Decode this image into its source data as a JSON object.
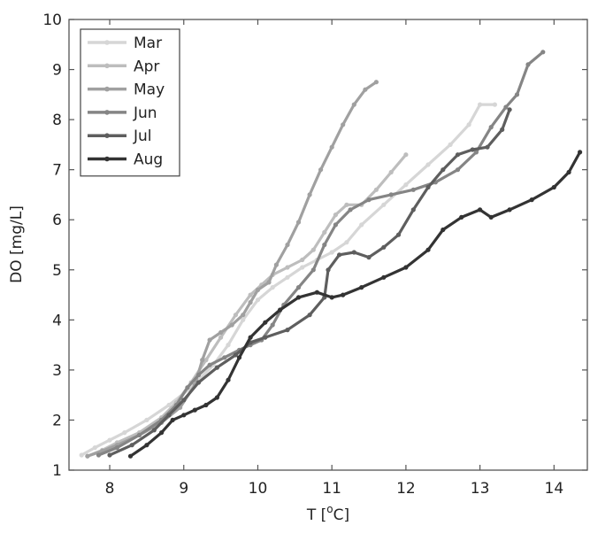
{
  "chart_data": {
    "type": "line",
    "xlabel_main": "T [",
    "xlabel_sup": "o",
    "xlabel_tail": "C]",
    "ylabel": "DO [mg/L]",
    "xlim": [
      7.45,
      14.45
    ],
    "ylim": [
      1,
      10
    ],
    "xticks": [
      8,
      9,
      10,
      11,
      12,
      13,
      14
    ],
    "yticks": [
      1,
      2,
      3,
      4,
      5,
      6,
      7,
      8,
      9,
      10
    ],
    "grid": false,
    "legend_position": "top-left",
    "series": [
      {
        "name": "Mar",
        "color": "#d6d6d6",
        "points": [
          [
            7.62,
            1.3
          ],
          [
            7.8,
            1.45
          ],
          [
            8.0,
            1.6
          ],
          [
            8.2,
            1.75
          ],
          [
            8.5,
            2.0
          ],
          [
            8.8,
            2.3
          ],
          [
            9.1,
            2.65
          ],
          [
            9.4,
            3.1
          ],
          [
            9.6,
            3.5
          ],
          [
            9.8,
            4.0
          ],
          [
            10.0,
            4.4
          ],
          [
            10.2,
            4.65
          ],
          [
            10.4,
            4.85
          ],
          [
            10.6,
            5.05
          ],
          [
            10.8,
            5.2
          ],
          [
            11.0,
            5.35
          ],
          [
            11.2,
            5.55
          ],
          [
            11.4,
            5.9
          ],
          [
            11.7,
            6.3
          ],
          [
            12.0,
            6.7
          ],
          [
            12.3,
            7.1
          ],
          [
            12.6,
            7.5
          ],
          [
            12.85,
            7.9
          ],
          [
            13.0,
            8.3
          ],
          [
            13.2,
            8.3
          ]
        ]
      },
      {
        "name": "Apr",
        "color": "#bdbdbd",
        "points": [
          [
            7.7,
            1.28
          ],
          [
            7.9,
            1.4
          ],
          [
            8.1,
            1.55
          ],
          [
            8.4,
            1.75
          ],
          [
            8.7,
            2.05
          ],
          [
            8.9,
            2.35
          ],
          [
            9.1,
            2.75
          ],
          [
            9.3,
            3.2
          ],
          [
            9.5,
            3.65
          ],
          [
            9.7,
            4.1
          ],
          [
            9.9,
            4.5
          ],
          [
            10.05,
            4.7
          ],
          [
            10.2,
            4.9
          ],
          [
            10.4,
            5.05
          ],
          [
            10.6,
            5.2
          ],
          [
            10.75,
            5.4
          ],
          [
            10.9,
            5.75
          ],
          [
            11.05,
            6.1
          ],
          [
            11.2,
            6.3
          ],
          [
            11.4,
            6.3
          ],
          [
            11.6,
            6.6
          ],
          [
            11.8,
            6.95
          ],
          [
            12.0,
            7.3
          ]
        ]
      },
      {
        "name": "May",
        "color": "#a0a0a0",
        "points": [
          [
            7.7,
            1.28
          ],
          [
            7.9,
            1.38
          ],
          [
            8.1,
            1.5
          ],
          [
            8.4,
            1.7
          ],
          [
            8.7,
            1.95
          ],
          [
            8.95,
            2.25
          ],
          [
            9.15,
            2.7
          ],
          [
            9.25,
            3.2
          ],
          [
            9.35,
            3.6
          ],
          [
            9.5,
            3.75
          ],
          [
            9.65,
            3.9
          ],
          [
            9.8,
            4.1
          ],
          [
            9.9,
            4.35
          ],
          [
            10.0,
            4.6
          ],
          [
            10.15,
            4.75
          ],
          [
            10.25,
            5.1
          ],
          [
            10.4,
            5.5
          ],
          [
            10.55,
            5.95
          ],
          [
            10.7,
            6.5
          ],
          [
            10.85,
            7.0
          ],
          [
            11.0,
            7.45
          ],
          [
            11.15,
            7.9
          ],
          [
            11.3,
            8.3
          ],
          [
            11.45,
            8.6
          ],
          [
            11.6,
            8.75
          ]
        ]
      },
      {
        "name": "Jun",
        "color": "#858585",
        "points": [
          [
            7.85,
            1.3
          ],
          [
            8.1,
            1.45
          ],
          [
            8.4,
            1.7
          ],
          [
            8.7,
            2.0
          ],
          [
            8.9,
            2.3
          ],
          [
            9.05,
            2.65
          ],
          [
            9.2,
            2.9
          ],
          [
            9.35,
            3.1
          ],
          [
            9.55,
            3.25
          ],
          [
            9.75,
            3.4
          ],
          [
            9.9,
            3.5
          ],
          [
            10.05,
            3.6
          ],
          [
            10.2,
            3.9
          ],
          [
            10.35,
            4.3
          ],
          [
            10.55,
            4.65
          ],
          [
            10.75,
            5.0
          ],
          [
            10.9,
            5.5
          ],
          [
            11.05,
            5.9
          ],
          [
            11.25,
            6.2
          ],
          [
            11.5,
            6.4
          ],
          [
            11.8,
            6.5
          ],
          [
            12.1,
            6.6
          ],
          [
            12.4,
            6.75
          ],
          [
            12.7,
            7.0
          ],
          [
            12.95,
            7.35
          ],
          [
            13.15,
            7.85
          ],
          [
            13.35,
            8.25
          ],
          [
            13.5,
            8.5
          ],
          [
            13.65,
            9.1
          ],
          [
            13.85,
            9.35
          ]
        ]
      },
      {
        "name": "Jul",
        "color": "#5e5e5e",
        "points": [
          [
            8.0,
            1.3
          ],
          [
            8.3,
            1.5
          ],
          [
            8.6,
            1.8
          ],
          [
            8.8,
            2.1
          ],
          [
            9.0,
            2.4
          ],
          [
            9.2,
            2.75
          ],
          [
            9.45,
            3.05
          ],
          [
            9.7,
            3.3
          ],
          [
            9.9,
            3.55
          ],
          [
            10.1,
            3.65
          ],
          [
            10.4,
            3.8
          ],
          [
            10.7,
            4.1
          ],
          [
            10.9,
            4.45
          ],
          [
            10.95,
            5.0
          ],
          [
            11.1,
            5.3
          ],
          [
            11.3,
            5.35
          ],
          [
            11.5,
            5.25
          ],
          [
            11.7,
            5.45
          ],
          [
            11.9,
            5.7
          ],
          [
            12.1,
            6.2
          ],
          [
            12.3,
            6.65
          ],
          [
            12.5,
            7.0
          ],
          [
            12.7,
            7.3
          ],
          [
            12.9,
            7.4
          ],
          [
            13.1,
            7.45
          ],
          [
            13.3,
            7.8
          ],
          [
            13.4,
            8.2
          ]
        ]
      },
      {
        "name": "Aug",
        "color": "#333333",
        "points": [
          [
            8.28,
            1.28
          ],
          [
            8.5,
            1.5
          ],
          [
            8.7,
            1.75
          ],
          [
            8.85,
            2.0
          ],
          [
            9.0,
            2.1
          ],
          [
            9.15,
            2.2
          ],
          [
            9.3,
            2.3
          ],
          [
            9.45,
            2.45
          ],
          [
            9.6,
            2.8
          ],
          [
            9.75,
            3.25
          ],
          [
            9.9,
            3.65
          ],
          [
            10.1,
            3.95
          ],
          [
            10.3,
            4.2
          ],
          [
            10.55,
            4.45
          ],
          [
            10.8,
            4.55
          ],
          [
            11.0,
            4.45
          ],
          [
            11.15,
            4.5
          ],
          [
            11.4,
            4.65
          ],
          [
            11.7,
            4.85
          ],
          [
            12.0,
            5.05
          ],
          [
            12.3,
            5.4
          ],
          [
            12.5,
            5.8
          ],
          [
            12.75,
            6.05
          ],
          [
            13.0,
            6.2
          ],
          [
            13.15,
            6.05
          ],
          [
            13.4,
            6.2
          ],
          [
            13.7,
            6.4
          ],
          [
            14.0,
            6.65
          ],
          [
            14.2,
            6.95
          ],
          [
            14.35,
            7.35
          ]
        ]
      }
    ]
  }
}
